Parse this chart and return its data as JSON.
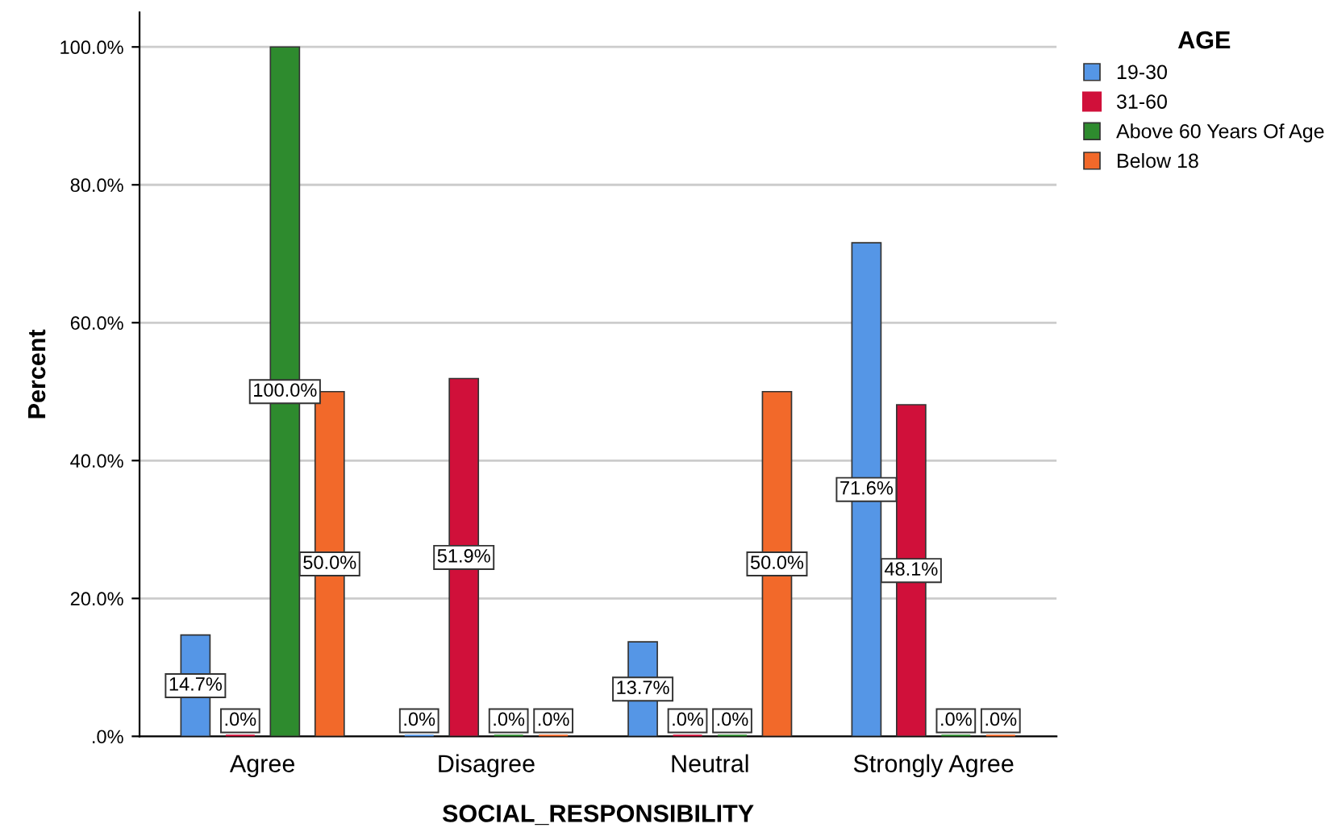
{
  "chart_data": {
    "type": "bar",
    "xlabel": "SOCIAL_RESPONSIBILITY",
    "ylabel": "Percent",
    "legend_title": "AGE",
    "legend": "top right",
    "grid": "y",
    "categories": [
      "Agree",
      "Disagree",
      "Neutral",
      "Strongly Agree"
    ],
    "series": [
      {
        "name": "19-30",
        "color": "#5596e6",
        "values": [
          14.7,
          0,
          13.7,
          71.6
        ],
        "value_labels": [
          "14.7%",
          ".0%",
          "13.7%",
          "71.6%"
        ]
      },
      {
        "name": "31-60",
        "color": "#d0103a",
        "values": [
          0,
          51.9,
          0,
          48.1
        ],
        "value_labels": [
          ".0%",
          "51.9%",
          ".0%",
          "48.1%"
        ]
      },
      {
        "name": "Above 60 Years Of Age",
        "color": "#2e8b2e",
        "values": [
          100,
          0,
          0,
          0
        ],
        "value_labels": [
          "100.0%",
          ".0%",
          ".0%",
          ".0%"
        ]
      },
      {
        "name": "Below 18",
        "color": "#f2692a",
        "values": [
          50,
          0,
          50,
          0
        ],
        "value_labels": [
          "50.0%",
          ".0%",
          "50.0%",
          ".0%"
        ]
      }
    ],
    "ylim": [
      0,
      105
    ],
    "yticks": [
      {
        "value": 0,
        "label": ".0%"
      },
      {
        "value": 20,
        "label": "20.0%"
      },
      {
        "value": 40,
        "label": "40.0%"
      },
      {
        "value": 60,
        "label": "60.0%"
      },
      {
        "value": 80,
        "label": "80.0%"
      },
      {
        "value": 100,
        "label": "100.0%"
      }
    ]
  }
}
